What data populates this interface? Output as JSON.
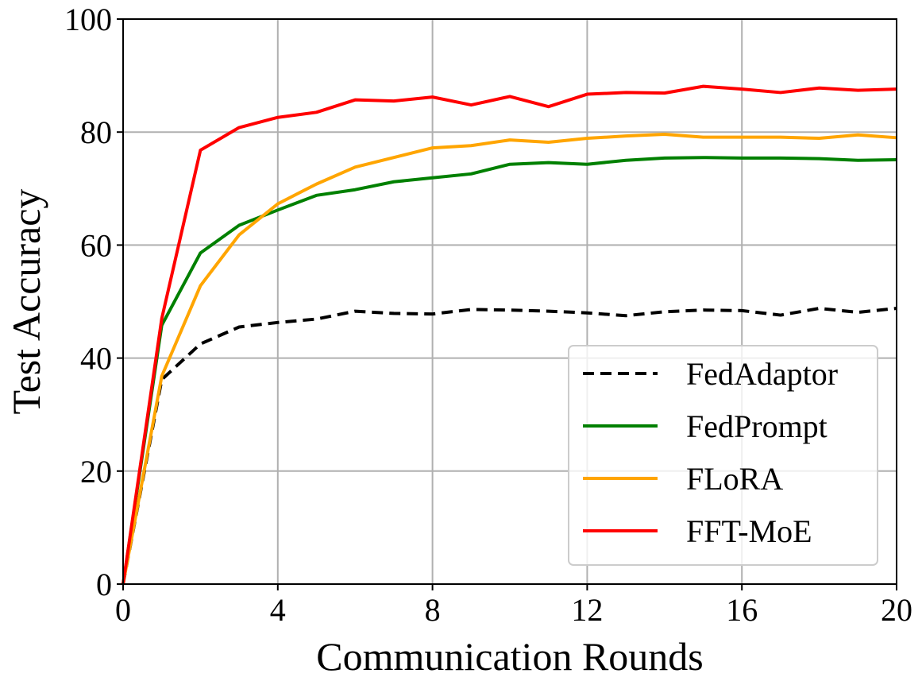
{
  "chart_data": {
    "type": "line",
    "title": "",
    "xlabel": "Communication Rounds",
    "ylabel": "Test Accuracy",
    "xlim": [
      0,
      20
    ],
    "ylim": [
      0,
      100
    ],
    "xticks": [
      0,
      4,
      8,
      12,
      16,
      20
    ],
    "yticks": [
      0,
      20,
      40,
      60,
      80,
      100
    ],
    "xtick_labels": [
      "0",
      "4",
      "8",
      "12",
      "16",
      "20"
    ],
    "ytick_labels": [
      "0",
      "20",
      "40",
      "60",
      "80",
      "100"
    ],
    "grid": true,
    "legend_position": "lower-right",
    "x": [
      0,
      1,
      2,
      3,
      4,
      5,
      6,
      7,
      8,
      9,
      10,
      11,
      12,
      13,
      14,
      15,
      16,
      17,
      18,
      19,
      20
    ],
    "series": [
      {
        "name": "FedAdaptor",
        "color": "#000000",
        "dashed": true,
        "values": [
          0,
          36.2,
          42.5,
          45.5,
          46.3,
          46.9,
          48.3,
          47.9,
          47.8,
          48.6,
          48.5,
          48.3,
          48.0,
          47.5,
          48.2,
          48.5,
          48.4,
          47.6,
          48.8,
          48.1,
          48.8
        ]
      },
      {
        "name": "FedPrompt",
        "color": "#008000",
        "dashed": false,
        "values": [
          0,
          45.8,
          58.6,
          63.5,
          66.2,
          68.8,
          69.8,
          71.2,
          71.9,
          72.6,
          74.3,
          74.6,
          74.3,
          75.0,
          75.4,
          75.5,
          75.4,
          75.4,
          75.3,
          75.0,
          75.1
        ]
      },
      {
        "name": "FLoRA",
        "color": "#ffa500",
        "dashed": false,
        "values": [
          0,
          36.8,
          52.8,
          61.8,
          67.3,
          70.8,
          73.8,
          75.5,
          77.2,
          77.6,
          78.6,
          78.2,
          78.9,
          79.3,
          79.6,
          79.1,
          79.1,
          79.1,
          78.9,
          79.5,
          79.0
        ]
      },
      {
        "name": "FFT-MoE",
        "color": "#ff0000",
        "dashed": false,
        "values": [
          0,
          47.0,
          76.8,
          80.8,
          82.6,
          83.5,
          85.7,
          85.5,
          86.2,
          84.8,
          86.3,
          84.5,
          86.7,
          87.0,
          86.9,
          88.1,
          87.6,
          87.0,
          87.8,
          87.4,
          87.6
        ]
      }
    ]
  }
}
